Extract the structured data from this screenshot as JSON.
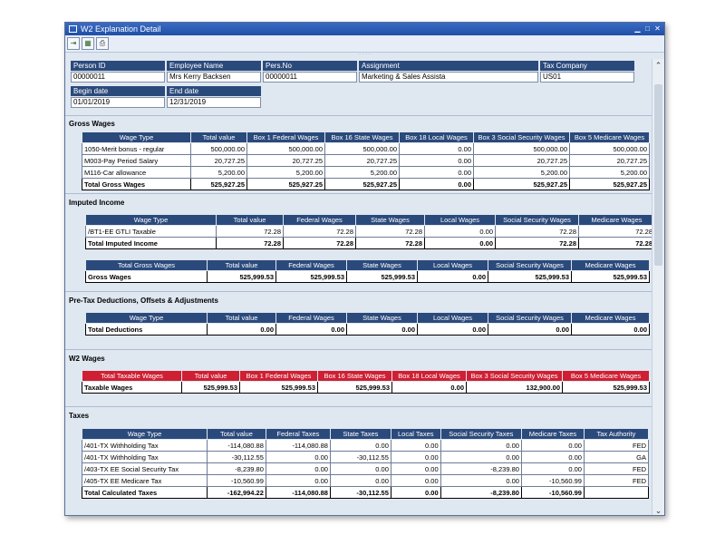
{
  "window": {
    "title": "W2 Explanation Detail"
  },
  "header": {
    "person_id_label": "Person ID",
    "person_id": "00000011",
    "employee_name_label": "Employee Name",
    "employee_name": "Mrs Kerry Backsen",
    "pers_no_label": "Pers.No",
    "pers_no": "00000011",
    "assignment_label": "Assignment",
    "assignment": "Marketing & Sales Assista",
    "tax_company_label": "Tax Company",
    "tax_company": "US01",
    "begin_date_label": "Begin date",
    "begin_date": "01/01/2019",
    "end_date_label": "End date",
    "end_date": "12/31/2019"
  },
  "gross": {
    "title": "Gross Wages",
    "columns": [
      "Wage Type",
      "Total value",
      "Box 1 Federal Wages",
      "Box 16 State Wages",
      "Box 18 Local Wages",
      "Box 3 Social Security Wages",
      "Box 5 Medicare Wages"
    ],
    "rows": [
      [
        "1050-Merit bonus - regular",
        "500,000.00",
        "500,000.00",
        "500,000.00",
        "0.00",
        "500,000.00",
        "500,000.00"
      ],
      [
        "M003-Pay Period Salary",
        "20,727.25",
        "20,727.25",
        "20,727.25",
        "0.00",
        "20,727.25",
        "20,727.25"
      ],
      [
        "M116-Car allowance",
        "5,200.00",
        "5,200.00",
        "5,200.00",
        "0.00",
        "5,200.00",
        "5,200.00"
      ]
    ],
    "total": [
      "Total Gross Wages",
      "525,927.25",
      "525,927.25",
      "525,927.25",
      "0.00",
      "525,927.25",
      "525,927.25"
    ]
  },
  "imputed": {
    "title": "Imputed Income",
    "columns": [
      "Wage Type",
      "Total value",
      "Federal Wages",
      "State Wages",
      "Local Wages",
      "Social Security Wages",
      "Medicare Wages"
    ],
    "rows": [
      [
        "/BT1-EE GTLI Taxable",
        "72.28",
        "72.28",
        "72.28",
        "0.00",
        "72.28",
        "72.28"
      ]
    ],
    "total": [
      "Total Imputed Income",
      "72.28",
      "72.28",
      "72.28",
      "0.00",
      "72.28",
      "72.28"
    ],
    "gross_columns": [
      "Total Gross Wages",
      "Total value",
      "Federal Wages",
      "State Wages",
      "Local Wages",
      "Social Security Wages",
      "Medicare Wages"
    ],
    "gross_total": [
      "Gross Wages",
      "525,999.53",
      "525,999.53",
      "525,999.53",
      "0.00",
      "525,999.53",
      "525,999.53"
    ]
  },
  "pretax": {
    "title": "Pre-Tax Deductions, Offsets & Adjustments",
    "columns": [
      "Wage Type",
      "Total value",
      "Federal Wages",
      "State Wages",
      "Local Wages",
      "Social Security Wages",
      "Medicare Wages"
    ],
    "total": [
      "Total Deductions",
      "0.00",
      "0.00",
      "0.00",
      "0.00",
      "0.00",
      "0.00"
    ]
  },
  "w2": {
    "title": "W2 Wages",
    "columns": [
      "Total Taxable Wages",
      "Total value",
      "Box 1 Federal Wages",
      "Box 16 State Wages",
      "Box 18 Local Wages",
      "Box 3 Social Security Wages",
      "Box 5 Medicare Wages"
    ],
    "total": [
      "Taxable Wages",
      "525,999.53",
      "525,999.53",
      "525,999.53",
      "0.00",
      "132,900.00",
      "525,999.53"
    ]
  },
  "taxes": {
    "title": "Taxes",
    "columns": [
      "Wage Type",
      "Total value",
      "Federal Taxes",
      "State Taxes",
      "Local Taxes",
      "Social Security Taxes",
      "Medicare Taxes",
      "Tax Authority"
    ],
    "rows": [
      [
        "/401-TX Withholding Tax",
        "-114,080.88",
        "-114,080.88",
        "0.00",
        "0.00",
        "0.00",
        "0.00",
        "FED"
      ],
      [
        "/401-TX Withholding Tax",
        "-30,112.55",
        "0.00",
        "-30,112.55",
        "0.00",
        "0.00",
        "0.00",
        "GA"
      ],
      [
        "/403-TX EE Social Security Tax",
        "-8,239.80",
        "0.00",
        "0.00",
        "0.00",
        "-8,239.80",
        "0.00",
        "FED"
      ],
      [
        "/405-TX EE Medicare Tax",
        "-10,560.99",
        "0.00",
        "0.00",
        "0.00",
        "0.00",
        "-10,560.99",
        "FED"
      ]
    ],
    "total": [
      "Total Calculated Taxes",
      "-162,994.22",
      "-114,080.88",
      "-30,112.55",
      "0.00",
      "-8,239.80",
      "-10,560.99",
      ""
    ]
  }
}
